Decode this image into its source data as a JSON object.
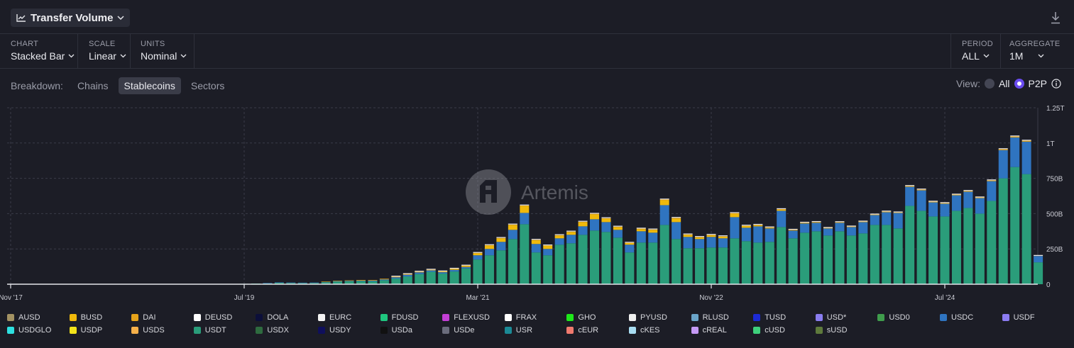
{
  "header": {
    "title": "Transfer Volume"
  },
  "controls": {
    "chart": {
      "label": "CHART",
      "value": "Stacked Bar"
    },
    "scale": {
      "label": "SCALE",
      "value": "Linear"
    },
    "units": {
      "label": "UNITS",
      "value": "Nominal"
    },
    "period": {
      "label": "PERIOD",
      "value": "ALL"
    },
    "aggregate": {
      "label": "AGGREGATE",
      "value": "1M"
    }
  },
  "breakdown": {
    "label": "Breakdown:",
    "options": [
      "Chains",
      "Stablecoins",
      "Sectors"
    ],
    "active": "Stablecoins"
  },
  "view": {
    "label": "View:",
    "options": [
      "All",
      "P2P"
    ],
    "selected": "P2P"
  },
  "watermark": "Artemis",
  "colors": {
    "background": "#1c1d26",
    "accent": "#6a4cf0",
    "usdt": "#2a9d7a",
    "usdc": "#2f74c0",
    "busd": "#f0b90b"
  },
  "chart_data": {
    "type": "bar",
    "stacked": true,
    "yticks": [
      "0",
      "250B",
      "500B",
      "750B",
      "1T",
      "1.25T"
    ],
    "ylim": [
      0,
      1250
    ],
    "unit": "billions USD",
    "xtick_labels": [
      "Nov '17",
      "Jul '19",
      "Mar '21",
      "Nov '22",
      "Jul '24"
    ],
    "x_start": "2017-11",
    "x_end": "2025-02",
    "grid": true,
    "legend_position": "bottom",
    "series_order": [
      "USDT",
      "USDC",
      "BUSD",
      "DAI"
    ],
    "series_values": {
      "2019-07": {
        "USDT": 2,
        "USDC": 0,
        "BUSD": 0,
        "DAI": 0
      },
      "2019-08": {
        "USDT": 5,
        "USDC": 0,
        "BUSD": 0,
        "DAI": 0
      },
      "2019-09": {
        "USDT": 6,
        "USDC": 1,
        "BUSD": 0,
        "DAI": 0
      },
      "2019-10": {
        "USDT": 10,
        "USDC": 2,
        "BUSD": 0,
        "DAI": 0
      },
      "2019-11": {
        "USDT": 9,
        "USDC": 2,
        "BUSD": 0,
        "DAI": 0
      },
      "2019-12": {
        "USDT": 8,
        "USDC": 2,
        "BUSD": 0,
        "DAI": 0
      },
      "2020-01": {
        "USDT": 9,
        "USDC": 2,
        "BUSD": 0,
        "DAI": 0
      },
      "2020-02": {
        "USDT": 13,
        "USDC": 3,
        "BUSD": 1,
        "DAI": 0
      },
      "2020-03": {
        "USDT": 18,
        "USDC": 4,
        "BUSD": 1,
        "DAI": 0
      },
      "2020-04": {
        "USDT": 20,
        "USDC": 4,
        "BUSD": 1,
        "DAI": 0
      },
      "2020-05": {
        "USDT": 22,
        "USDC": 4,
        "BUSD": 1,
        "DAI": 1
      },
      "2020-06": {
        "USDT": 20,
        "USDC": 5,
        "BUSD": 1,
        "DAI": 1
      },
      "2020-07": {
        "USDT": 28,
        "USDC": 6,
        "BUSD": 2,
        "DAI": 1
      },
      "2020-08": {
        "USDT": 40,
        "USDC": 9,
        "BUSD": 3,
        "DAI": 2
      },
      "2020-09": {
        "USDT": 55,
        "USDC": 12,
        "BUSD": 3,
        "DAI": 2
      },
      "2020-10": {
        "USDT": 72,
        "USDC": 12,
        "BUSD": 3,
        "DAI": 2
      },
      "2020-11": {
        "USDT": 88,
        "USDC": 10,
        "BUSD": 3,
        "DAI": 2
      },
      "2020-12": {
        "USDT": 75,
        "USDC": 10,
        "BUSD": 5,
        "DAI": 1
      },
      "2021-01": {
        "USDT": 90,
        "USDC": 12,
        "BUSD": 6,
        "DAI": 2
      },
      "2021-02": {
        "USDT": 112,
        "USDC": 10,
        "BUSD": 8,
        "DAI": 2
      },
      "2021-03": {
        "USDT": 175,
        "USDC": 30,
        "BUSD": 15,
        "DAI": 2
      },
      "2021-04": {
        "USDT": 205,
        "USDC": 45,
        "BUSD": 25,
        "DAI": 2
      },
      "2021-05": {
        "USDT": 240,
        "USDC": 60,
        "BUSD": 25,
        "DAI": 3
      },
      "2021-06": {
        "USDT": 320,
        "USDC": 65,
        "BUSD": 35,
        "DAI": 3
      },
      "2021-07": {
        "USDT": 425,
        "USDC": 80,
        "BUSD": 50,
        "DAI": 3
      },
      "2021-08": {
        "USDT": 225,
        "USDC": 60,
        "BUSD": 27,
        "DAI": 3
      },
      "2021-09": {
        "USDT": 205,
        "USDC": 45,
        "BUSD": 23,
        "DAI": 2
      },
      "2021-10": {
        "USDT": 280,
        "USDC": 45,
        "BUSD": 20,
        "DAI": 3
      },
      "2021-11": {
        "USDT": 290,
        "USDC": 60,
        "BUSD": 20,
        "DAI": 3
      },
      "2021-12": {
        "USDT": 350,
        "USDC": 60,
        "BUSD": 30,
        "DAI": 3
      },
      "2022-01": {
        "USDT": 380,
        "USDC": 80,
        "BUSD": 35,
        "DAI": 4
      },
      "2022-02": {
        "USDT": 370,
        "USDC": 70,
        "BUSD": 25,
        "DAI": 3
      },
      "2022-03": {
        "USDT": 330,
        "USDC": 55,
        "BUSD": 20,
        "DAI": 3
      },
      "2022-04": {
        "USDT": 225,
        "USDC": 55,
        "BUSD": 12,
        "DAI": 2
      },
      "2022-05": {
        "USDT": 295,
        "USDC": 80,
        "BUSD": 15,
        "DAI": 4
      },
      "2022-06": {
        "USDT": 295,
        "USDC": 70,
        "BUSD": 20,
        "DAI": 3
      },
      "2022-07": {
        "USDT": 420,
        "USDC": 140,
        "BUSD": 35,
        "DAI": 5
      },
      "2022-08": {
        "USDT": 320,
        "USDC": 120,
        "BUSD": 25,
        "DAI": 5
      },
      "2022-09": {
        "USDT": 255,
        "USDC": 80,
        "BUSD": 15,
        "DAI": 3
      },
      "2022-10": {
        "USDT": 255,
        "USDC": 65,
        "BUSD": 12,
        "DAI": 3
      },
      "2022-11": {
        "USDT": 260,
        "USDC": 75,
        "BUSD": 12,
        "DAI": 3
      },
      "2022-12": {
        "USDT": 260,
        "USDC": 65,
        "BUSD": 12,
        "DAI": 3
      },
      "2023-01": {
        "USDT": 325,
        "USDC": 150,
        "BUSD": 25,
        "DAI": 4
      },
      "2023-02": {
        "USDT": 305,
        "USDC": 95,
        "BUSD": 12,
        "DAI": 3
      },
      "2023-03": {
        "USDT": 295,
        "USDC": 115,
        "BUSD": 8,
        "DAI": 3
      },
      "2023-04": {
        "USDT": 300,
        "USDC": 95,
        "BUSD": 5,
        "DAI": 3
      },
      "2023-05": {
        "USDT": 405,
        "USDC": 115,
        "BUSD": 8,
        "DAI": 4
      },
      "2023-06": {
        "USDT": 325,
        "USDC": 55,
        "BUSD": 3,
        "DAI": 3
      },
      "2023-07": {
        "USDT": 365,
        "USDC": 65,
        "BUSD": 3,
        "DAI": 3
      },
      "2023-08": {
        "USDT": 375,
        "USDC": 60,
        "BUSD": 3,
        "DAI": 3
      },
      "2023-09": {
        "USDT": 345,
        "USDC": 50,
        "BUSD": 2,
        "DAI": 2
      },
      "2023-10": {
        "USDT": 375,
        "USDC": 60,
        "BUSD": 2,
        "DAI": 3
      },
      "2023-11": {
        "USDT": 345,
        "USDC": 60,
        "BUSD": 1,
        "DAI": 3
      },
      "2023-12": {
        "USDT": 360,
        "USDC": 80,
        "BUSD": 1,
        "DAI": 3
      },
      "2024-01": {
        "USDT": 420,
        "USDC": 70,
        "BUSD": 1,
        "DAI": 3
      },
      "2024-02": {
        "USDT": 420,
        "USDC": 90,
        "BUSD": 1,
        "DAI": 4
      },
      "2024-03": {
        "USDT": 395,
        "USDC": 110,
        "BUSD": 1,
        "DAI": 3
      },
      "2024-04": {
        "USDT": 555,
        "USDC": 135,
        "BUSD": 1,
        "DAI": 5
      },
      "2024-05": {
        "USDT": 520,
        "USDC": 145,
        "BUSD": 1,
        "DAI": 5
      },
      "2024-06": {
        "USDT": 480,
        "USDC": 100,
        "BUSD": 1,
        "DAI": 4
      },
      "2024-07": {
        "USDT": 480,
        "USDC": 90,
        "BUSD": 1,
        "DAI": 4
      },
      "2024-08": {
        "USDT": 520,
        "USDC": 110,
        "BUSD": 1,
        "DAI": 4
      },
      "2024-09": {
        "USDT": 540,
        "USDC": 115,
        "BUSD": 1,
        "DAI": 5
      },
      "2024-10": {
        "USDT": 500,
        "USDC": 110,
        "BUSD": 1,
        "DAI": 4
      },
      "2024-11": {
        "USDT": 590,
        "USDC": 140,
        "BUSD": 1,
        "DAI": 5
      },
      "2024-12": {
        "USDT": 750,
        "USDC": 200,
        "BUSD": 1,
        "DAI": 6
      },
      "2025-01": {
        "USDT": 830,
        "USDC": 210,
        "BUSD": 1,
        "DAI": 6
      },
      "2025-02": {
        "USDT": 780,
        "USDC": 230,
        "BUSD": 1,
        "DAI": 6
      },
      "2025-03": {
        "USDT": 155,
        "USDC": 45,
        "BUSD": 0,
        "DAI": 1
      }
    }
  },
  "legend": [
    {
      "name": "AUSD",
      "color": "#a39263"
    },
    {
      "name": "BUSD",
      "color": "#f0b90b"
    },
    {
      "name": "DAI",
      "color": "#e6a31a"
    },
    {
      "name": "DEUSD",
      "color": "#ffffff"
    },
    {
      "name": "DOLA",
      "color": "#0c0f3a"
    },
    {
      "name": "EURC",
      "color": "#f3f3f3"
    },
    {
      "name": "FDUSD",
      "color": "#1fc77f"
    },
    {
      "name": "FLEXUSD",
      "color": "#c43fd6"
    },
    {
      "name": "FRAX",
      "color": "#ffffff"
    },
    {
      "name": "GHO",
      "color": "#1ee81a"
    },
    {
      "name": "PYUSD",
      "color": "#efefef"
    },
    {
      "name": "RLUSD",
      "color": "#6aa5c9"
    },
    {
      "name": "TUSD",
      "color": "#1c2ad6"
    },
    {
      "name": "USD*",
      "color": "#8a7df0"
    },
    {
      "name": "USD0",
      "color": "#3f9d4c"
    },
    {
      "name": "USDC",
      "color": "#2f74c0"
    },
    {
      "name": "USDF",
      "color": "#8c7cf2"
    },
    {
      "name": "USDGLO",
      "color": "#2ee0e0"
    },
    {
      "name": "USDP",
      "color": "#f2e31a"
    },
    {
      "name": "USDS",
      "color": "#f5b04a"
    },
    {
      "name": "USDT",
      "color": "#2a9d7a"
    },
    {
      "name": "USDX",
      "color": "#2e6b3f"
    },
    {
      "name": "USDY",
      "color": "#0f0f5c"
    },
    {
      "name": "USDa",
      "color": "#111111"
    },
    {
      "name": "USDe",
      "color": "#6a6c7c"
    },
    {
      "name": "USR",
      "color": "#1b8a96"
    },
    {
      "name": "cEUR",
      "color": "#f07a6e"
    },
    {
      "name": "cKES",
      "color": "#a8ddf2"
    },
    {
      "name": "cREAL",
      "color": "#c59af5"
    },
    {
      "name": "cUSD",
      "color": "#3ed07c"
    },
    {
      "name": "sUSD",
      "color": "#5e7a3c"
    }
  ]
}
